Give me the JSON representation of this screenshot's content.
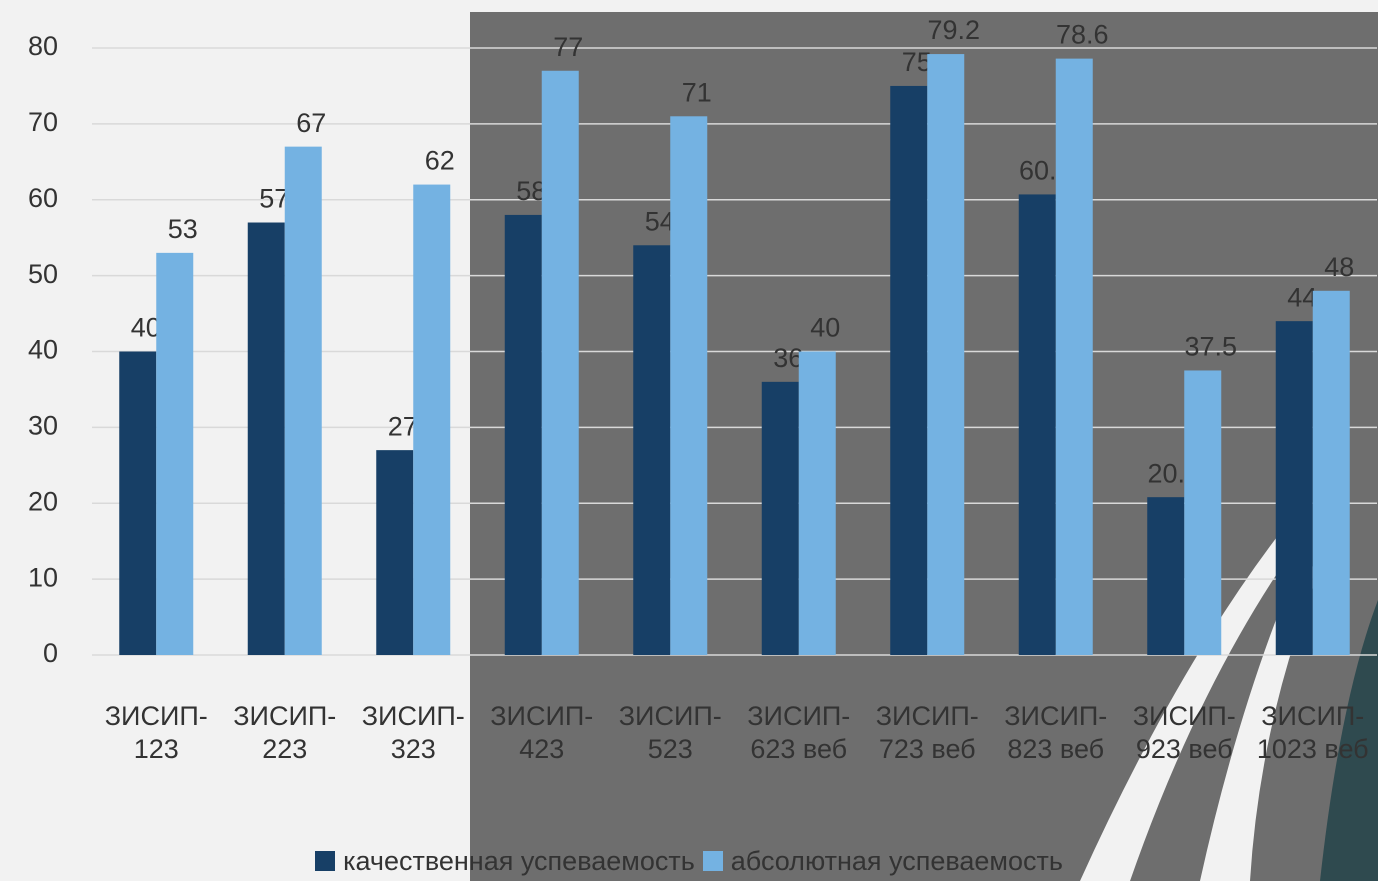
{
  "chart_data": {
    "type": "bar",
    "categories": [
      "ЗИСИП-123",
      "ЗИСИП-223",
      "ЗИСИП-323",
      "ЗИСИП-423",
      "ЗИСИП-523",
      "ЗИСИП-623 веб",
      "ЗИСИП-723 веб",
      "ЗИСИП-823 веб",
      "ЗИСИП-923 веб",
      "ЗИСИП-1023 веб"
    ],
    "series": [
      {
        "name": "качественная успеваемость",
        "color": "#173f66",
        "values": [
          40,
          57,
          27,
          58,
          54,
          36,
          75,
          60.7,
          20.8,
          44
        ]
      },
      {
        "name": "абсолютная успеваемость",
        "color": "#74b2e2",
        "values": [
          53,
          67,
          62,
          77,
          71,
          40,
          79.2,
          78.6,
          37.5,
          48
        ]
      }
    ],
    "ylim": [
      0,
      80
    ],
    "yticks": [
      0,
      10,
      20,
      30,
      40,
      50,
      60,
      70,
      80
    ],
    "grid": true,
    "legend": "bottom"
  }
}
